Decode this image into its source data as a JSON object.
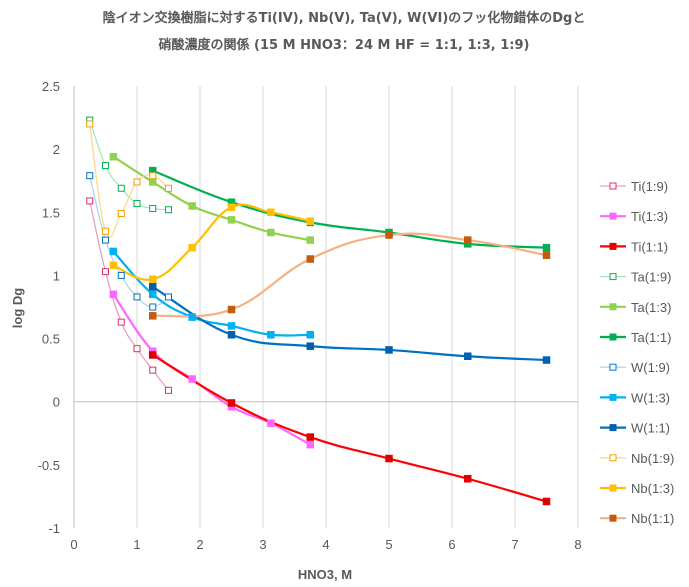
{
  "chart_data": {
    "type": "scatter",
    "title_line1": "陰イオン交換樹脂に対するTi(IV), Nb(V), Ta(V), W(VI)のフッ化物錯体のDgと",
    "title_line2": "硝酸濃度の関係 (15 M HNO3：24 M HF = 1:1, 1:3, 1:9)",
    "xlabel": "HNO3, M",
    "ylabel": "log Dg",
    "xlim": [
      0,
      8
    ],
    "ylim": [
      -1,
      2.5
    ],
    "xticks": [
      "0",
      "1",
      "2",
      "3",
      "4",
      "5",
      "6",
      "7",
      "8"
    ],
    "yticks": [
      "-1",
      "-0.5",
      "0",
      "0.5",
      "1",
      "1.5",
      "2",
      "2.5"
    ],
    "xtick_values": [
      0,
      1,
      2,
      3,
      4,
      5,
      6,
      7,
      8
    ],
    "ytick_values": [
      -1,
      -0.5,
      0,
      0.5,
      1,
      1.5,
      2,
      2.5
    ],
    "grid": "vertical",
    "legend": "right",
    "series": [
      {
        "name": "Ti(1:9)",
        "color": "#E6A0C4",
        "marker_color": "#E0306A",
        "marker": "open",
        "line": "thin",
        "x": [
          0.25,
          0.5,
          0.75,
          1.0,
          1.25,
          1.5
        ],
        "y": [
          1.59,
          1.03,
          0.63,
          0.42,
          0.25,
          0.09
        ]
      },
      {
        "name": "Ti(1:3)",
        "color": "#FF66FF",
        "marker_color": "#FF66FF",
        "marker": "filled",
        "line": "thick",
        "x": [
          0.625,
          1.25,
          1.875,
          2.5,
          3.125,
          3.75
        ],
        "y": [
          0.85,
          0.4,
          0.18,
          -0.04,
          -0.17,
          -0.34
        ]
      },
      {
        "name": "Ti(1:1)",
        "color": "#FF0000",
        "marker_color": "#E00000",
        "marker": "filled",
        "line": "thick",
        "x": [
          1.25,
          2.5,
          3.75,
          5.0,
          6.25,
          7.5
        ],
        "y": [
          0.37,
          -0.01,
          -0.28,
          -0.45,
          -0.61,
          -0.79
        ]
      },
      {
        "name": "Ta(1:9)",
        "color": "#A8E6B8",
        "marker_color": "#00B050",
        "marker": "open",
        "line": "thin",
        "x": [
          0.25,
          0.5,
          0.75,
          1.0,
          1.25,
          1.5
        ],
        "y": [
          2.23,
          1.87,
          1.69,
          1.57,
          1.53,
          1.52
        ]
      },
      {
        "name": "Ta(1:3)",
        "color": "#92D050",
        "marker_color": "#92D050",
        "marker": "filled",
        "line": "thick",
        "x": [
          0.625,
          1.25,
          1.875,
          2.5,
          3.125,
          3.75
        ],
        "y": [
          1.94,
          1.74,
          1.55,
          1.44,
          1.34,
          1.28
        ]
      },
      {
        "name": "Ta(1:1)",
        "color": "#00B050",
        "marker_color": "#00B050",
        "marker": "filled",
        "line": "thick",
        "x": [
          1.25,
          2.5,
          3.75,
          5.0,
          6.25,
          7.5
        ],
        "y": [
          1.83,
          1.58,
          1.42,
          1.34,
          1.25,
          1.22
        ]
      },
      {
        "name": "W(1:9)",
        "color": "#A6D8F5",
        "marker_color": "#0070C0",
        "marker": "open",
        "line": "thin",
        "x": [
          0.25,
          0.5,
          0.75,
          1.0,
          1.25,
          1.5
        ],
        "y": [
          1.79,
          1.28,
          1.0,
          0.83,
          0.75,
          0.83
        ]
      },
      {
        "name": "W(1:3)",
        "color": "#00B0F0",
        "marker_color": "#00B0F0",
        "marker": "filled",
        "line": "thick",
        "x": [
          0.625,
          1.25,
          1.875,
          2.5,
          3.125,
          3.75
        ],
        "y": [
          1.19,
          0.85,
          0.67,
          0.6,
          0.53,
          0.53
        ]
      },
      {
        "name": "W(1:1)",
        "color": "#0070C0",
        "marker_color": "#0060B0",
        "marker": "filled",
        "line": "thick",
        "x": [
          1.25,
          2.5,
          3.75,
          5.0,
          6.25,
          7.5
        ],
        "y": [
          0.91,
          0.53,
          0.44,
          0.41,
          0.36,
          0.33
        ]
      },
      {
        "name": "Nb(1:9)",
        "color": "#FFD98A",
        "marker_color": "#F4A000",
        "marker": "open",
        "line": "thin",
        "x": [
          0.25,
          0.5,
          0.75,
          1.0,
          1.25,
          1.5
        ],
        "y": [
          2.2,
          1.35,
          1.49,
          1.74,
          1.79,
          1.69
        ]
      },
      {
        "name": "Nb(1:3)",
        "color": "#FFC000",
        "marker_color": "#FFC000",
        "marker": "filled",
        "line": "thick",
        "x": [
          0.625,
          1.25,
          1.875,
          2.5,
          3.125,
          3.75
        ],
        "y": [
          1.08,
          0.97,
          1.22,
          1.54,
          1.5,
          1.43
        ]
      },
      {
        "name": "Nb(1:1)",
        "color": "#F4B183",
        "marker_color": "#C55A11",
        "marker": "filled",
        "line": "thick",
        "x": [
          1.25,
          2.5,
          3.75,
          5.0,
          6.25,
          7.5
        ],
        "y": [
          0.68,
          0.73,
          1.13,
          1.32,
          1.28,
          1.16
        ]
      }
    ]
  }
}
